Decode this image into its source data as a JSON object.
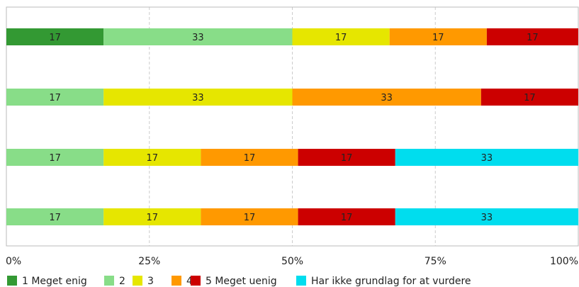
{
  "chart_data": {
    "type": "bar",
    "orientation": "horizontal",
    "stacked": true,
    "percent": true,
    "title": "",
    "xlabel": "",
    "ylabel": "",
    "xlim": [
      0,
      100
    ],
    "grid": true,
    "legend_position": "bottom",
    "x_ticks": [
      "0%",
      "25%",
      "50%",
      "75%",
      "100%"
    ],
    "categories": [
      "",
      "",
      "",
      ""
    ],
    "series": [
      {
        "name": "1 Meget enig",
        "color": "#339933",
        "values": [
          17,
          0,
          0,
          0
        ]
      },
      {
        "name": "2",
        "color": "#88dd88",
        "values": [
          33,
          17,
          17,
          17
        ]
      },
      {
        "name": "3",
        "color": "#e6e600",
        "values": [
          17,
          33,
          17,
          17
        ]
      },
      {
        "name": "4",
        "color": "#ff9900",
        "values": [
          17,
          33,
          17,
          17
        ]
      },
      {
        "name": "5 Meget uenig",
        "color": "#cc0000",
        "values": [
          17,
          17,
          17,
          17
        ]
      },
      {
        "name": "Har ikke grundlag for  at vurdere",
        "color": "#00ddee",
        "values": [
          0,
          0,
          33,
          33
        ]
      }
    ]
  }
}
